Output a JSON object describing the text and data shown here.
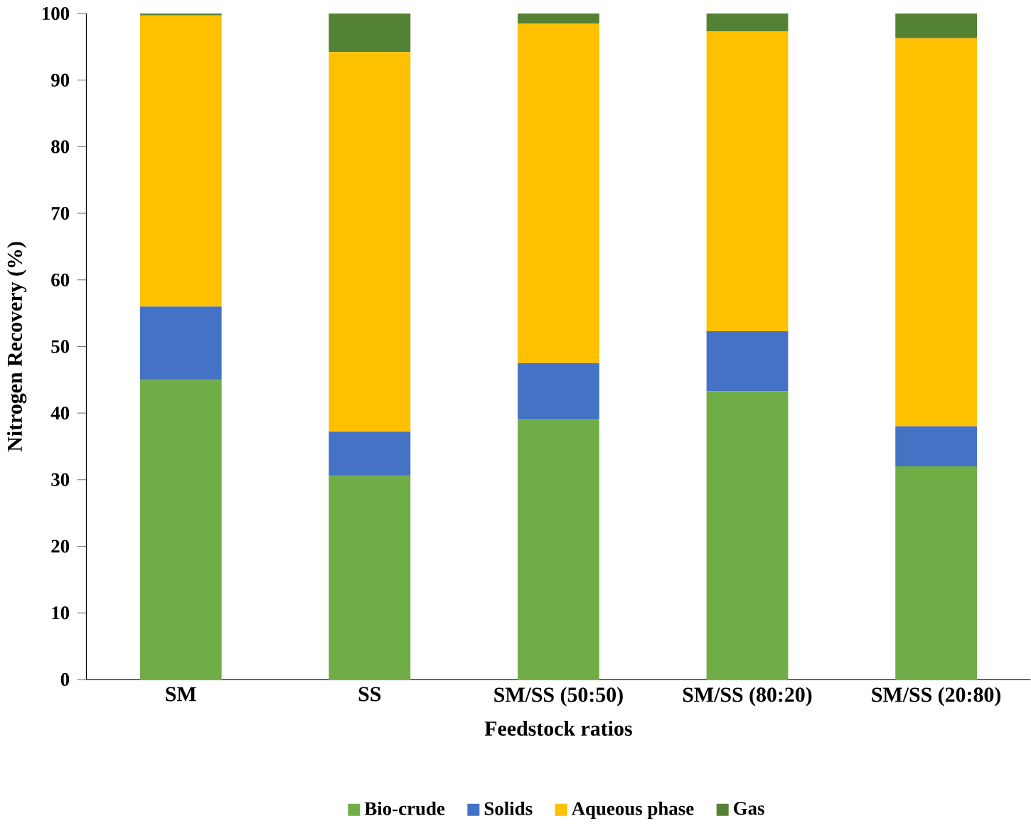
{
  "chart_data": {
    "type": "bar",
    "stacked": true,
    "xlabel": "Feedstock ratios",
    "ylabel": "Nitrogen Recovery (%)",
    "categories": [
      "SM",
      "SS",
      "SM/SS (50:50)",
      "SM/SS (80:20)",
      "SM/SS (20:80)"
    ],
    "series": [
      {
        "name": "Bio-crude",
        "color": "#70ad47",
        "values": [
          45,
          30.6,
          39,
          43.3,
          32
        ]
      },
      {
        "name": "Solids",
        "color": "#4472c4",
        "values": [
          11,
          6.6,
          8.5,
          9,
          6
        ]
      },
      {
        "name": "Aqueous phase",
        "color": "#ffc000",
        "values": [
          43.7,
          57,
          51,
          45,
          58.3
        ]
      },
      {
        "name": "Gas",
        "color": "#548235",
        "values": [
          0.3,
          5.8,
          1.5,
          2.7,
          3.7
        ]
      }
    ],
    "ylim": [
      0,
      100
    ],
    "yticks": [
      0,
      10,
      20,
      30,
      40,
      50,
      60,
      70,
      80,
      90,
      100
    ],
    "grid": false,
    "legend": "bottom"
  }
}
